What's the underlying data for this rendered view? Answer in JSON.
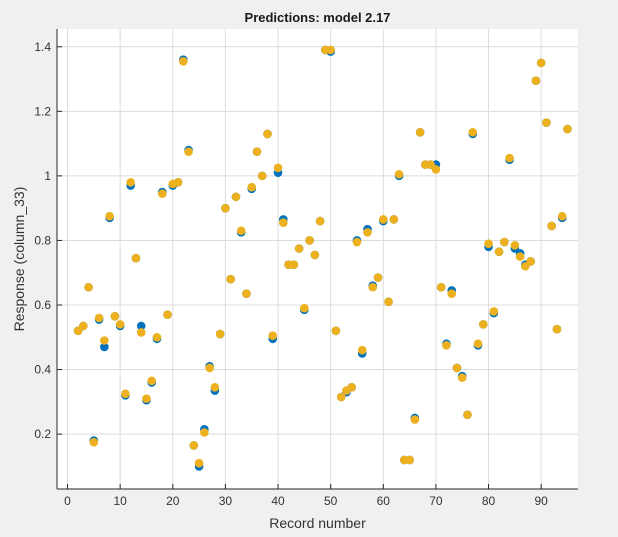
{
  "chart_data": {
    "type": "scatter",
    "title": "Predictions: model 2.17",
    "xlabel": "Record number",
    "ylabel": "Response (column_33)",
    "xlim": [
      -2,
      97
    ],
    "ylim": [
      0.03,
      1.455
    ],
    "xticks": [
      0,
      10,
      20,
      30,
      40,
      50,
      60,
      70,
      80,
      90
    ],
    "yticks": [
      0.2,
      0.4,
      0.6,
      0.8,
      1,
      1.2,
      1.4
    ],
    "ytick_labels": [
      "0.2",
      "0.4",
      "0.6",
      "0.8",
      "1",
      "1.2",
      "1.4"
    ],
    "grid": true,
    "legend": "none",
    "series": [
      {
        "color": "#0072BD",
        "points": [
          [
            2,
            0.52
          ],
          [
            3,
            0.535
          ],
          [
            4,
            0.655
          ],
          [
            5,
            0.18
          ],
          [
            6,
            0.555
          ],
          [
            7,
            0.47
          ],
          [
            8,
            0.87
          ],
          [
            9,
            0.565
          ],
          [
            10,
            0.535
          ],
          [
            11,
            0.32
          ],
          [
            12,
            0.97
          ],
          [
            13,
            0.745
          ],
          [
            14,
            0.535
          ],
          [
            15,
            0.305
          ],
          [
            16,
            0.36
          ],
          [
            17,
            0.495
          ],
          [
            18,
            0.95
          ],
          [
            19,
            0.57
          ],
          [
            20,
            0.97
          ],
          [
            21,
            0.98
          ],
          [
            22,
            1.36
          ],
          [
            23,
            1.08
          ],
          [
            24,
            0.165
          ],
          [
            25,
            0.1
          ],
          [
            26,
            0.215
          ],
          [
            27,
            0.41
          ],
          [
            28,
            0.335
          ],
          [
            29,
            0.51
          ],
          [
            30,
            0.9
          ],
          [
            31,
            0.68
          ],
          [
            32,
            0.935
          ],
          [
            33,
            0.825
          ],
          [
            34,
            0.635
          ],
          [
            35,
            0.96
          ],
          [
            36,
            1.075
          ],
          [
            37,
            1.0
          ],
          [
            38,
            1.13
          ],
          [
            39,
            0.495
          ],
          [
            40,
            1.01
          ],
          [
            41,
            0.865
          ],
          [
            42,
            0.725
          ],
          [
            43,
            0.725
          ],
          [
            44,
            0.775
          ],
          [
            45,
            0.585
          ],
          [
            46,
            0.8
          ],
          [
            47,
            0.755
          ],
          [
            48,
            0.86
          ],
          [
            49,
            1.39
          ],
          [
            50,
            1.385
          ],
          [
            51,
            0.52
          ],
          [
            52,
            0.315
          ],
          [
            53,
            0.33
          ],
          [
            54,
            0.345
          ],
          [
            55,
            0.8
          ],
          [
            56,
            0.45
          ],
          [
            57,
            0.835
          ],
          [
            58,
            0.66
          ],
          [
            59,
            0.685
          ],
          [
            60,
            0.86
          ],
          [
            61,
            0.61
          ],
          [
            62,
            0.865
          ],
          [
            63,
            1.0
          ],
          [
            64,
            0.12
          ],
          [
            65,
            0.12
          ],
          [
            66,
            0.25
          ],
          [
            67,
            1.135
          ],
          [
            68,
            1.035
          ],
          [
            69,
            1.035
          ],
          [
            70,
            1.035
          ],
          [
            71,
            0.655
          ],
          [
            72,
            0.48
          ],
          [
            73,
            0.645
          ],
          [
            74,
            0.405
          ],
          [
            75,
            0.38
          ],
          [
            76,
            0.26
          ],
          [
            77,
            1.13
          ],
          [
            78,
            0.475
          ],
          [
            79,
            0.54
          ],
          [
            80,
            0.78
          ],
          [
            81,
            0.575
          ],
          [
            82,
            0.765
          ],
          [
            83,
            0.795
          ],
          [
            84,
            1.05
          ],
          [
            85,
            0.775
          ],
          [
            86,
            0.76
          ],
          [
            87,
            0.725
          ],
          [
            88,
            0.735
          ],
          [
            89,
            1.295
          ],
          [
            90,
            1.35
          ],
          [
            91,
            1.165
          ],
          [
            92,
            0.845
          ],
          [
            93,
            0.525
          ],
          [
            94,
            0.87
          ],
          [
            95,
            1.145
          ]
        ]
      },
      {
        "color": "#EDB120",
        "points": [
          [
            2,
            0.52
          ],
          [
            3,
            0.535
          ],
          [
            4,
            0.655
          ],
          [
            5,
            0.175
          ],
          [
            6,
            0.56
          ],
          [
            7,
            0.49
          ],
          [
            8,
            0.875
          ],
          [
            9,
            0.565
          ],
          [
            10,
            0.54
          ],
          [
            11,
            0.325
          ],
          [
            12,
            0.98
          ],
          [
            13,
            0.745
          ],
          [
            14,
            0.515
          ],
          [
            15,
            0.31
          ],
          [
            16,
            0.365
          ],
          [
            17,
            0.5
          ],
          [
            18,
            0.945
          ],
          [
            19,
            0.57
          ],
          [
            20,
            0.975
          ],
          [
            21,
            0.98
          ],
          [
            22,
            1.355
          ],
          [
            23,
            1.075
          ],
          [
            24,
            0.165
          ],
          [
            25,
            0.11
          ],
          [
            26,
            0.205
          ],
          [
            27,
            0.405
          ],
          [
            28,
            0.345
          ],
          [
            29,
            0.51
          ],
          [
            30,
            0.9
          ],
          [
            31,
            0.68
          ],
          [
            32,
            0.935
          ],
          [
            33,
            0.83
          ],
          [
            34,
            0.635
          ],
          [
            35,
            0.965
          ],
          [
            36,
            1.075
          ],
          [
            37,
            1.0
          ],
          [
            38,
            1.13
          ],
          [
            39,
            0.505
          ],
          [
            40,
            1.025
          ],
          [
            41,
            0.855
          ],
          [
            42,
            0.725
          ],
          [
            43,
            0.725
          ],
          [
            44,
            0.775
          ],
          [
            45,
            0.59
          ],
          [
            46,
            0.8
          ],
          [
            47,
            0.755
          ],
          [
            48,
            0.86
          ],
          [
            49,
            1.39
          ],
          [
            50,
            1.39
          ],
          [
            51,
            0.52
          ],
          [
            52,
            0.315
          ],
          [
            53,
            0.335
          ],
          [
            54,
            0.345
          ],
          [
            55,
            0.795
          ],
          [
            56,
            0.46
          ],
          [
            57,
            0.825
          ],
          [
            58,
            0.655
          ],
          [
            59,
            0.685
          ],
          [
            60,
            0.865
          ],
          [
            61,
            0.61
          ],
          [
            62,
            0.865
          ],
          [
            63,
            1.005
          ],
          [
            64,
            0.12
          ],
          [
            65,
            0.12
          ],
          [
            66,
            0.245
          ],
          [
            67,
            1.135
          ],
          [
            68,
            1.035
          ],
          [
            69,
            1.035
          ],
          [
            70,
            1.02
          ],
          [
            71,
            0.655
          ],
          [
            72,
            0.475
          ],
          [
            73,
            0.635
          ],
          [
            74,
            0.405
          ],
          [
            75,
            0.375
          ],
          [
            76,
            0.26
          ],
          [
            77,
            1.135
          ],
          [
            78,
            0.48
          ],
          [
            79,
            0.54
          ],
          [
            80,
            0.79
          ],
          [
            81,
            0.58
          ],
          [
            82,
            0.765
          ],
          [
            83,
            0.795
          ],
          [
            84,
            1.055
          ],
          [
            85,
            0.785
          ],
          [
            86,
            0.75
          ],
          [
            87,
            0.72
          ],
          [
            88,
            0.735
          ],
          [
            89,
            1.295
          ],
          [
            90,
            1.35
          ],
          [
            91,
            1.165
          ],
          [
            92,
            0.845
          ],
          [
            93,
            0.525
          ],
          [
            94,
            0.875
          ],
          [
            95,
            1.145
          ]
        ]
      }
    ]
  }
}
